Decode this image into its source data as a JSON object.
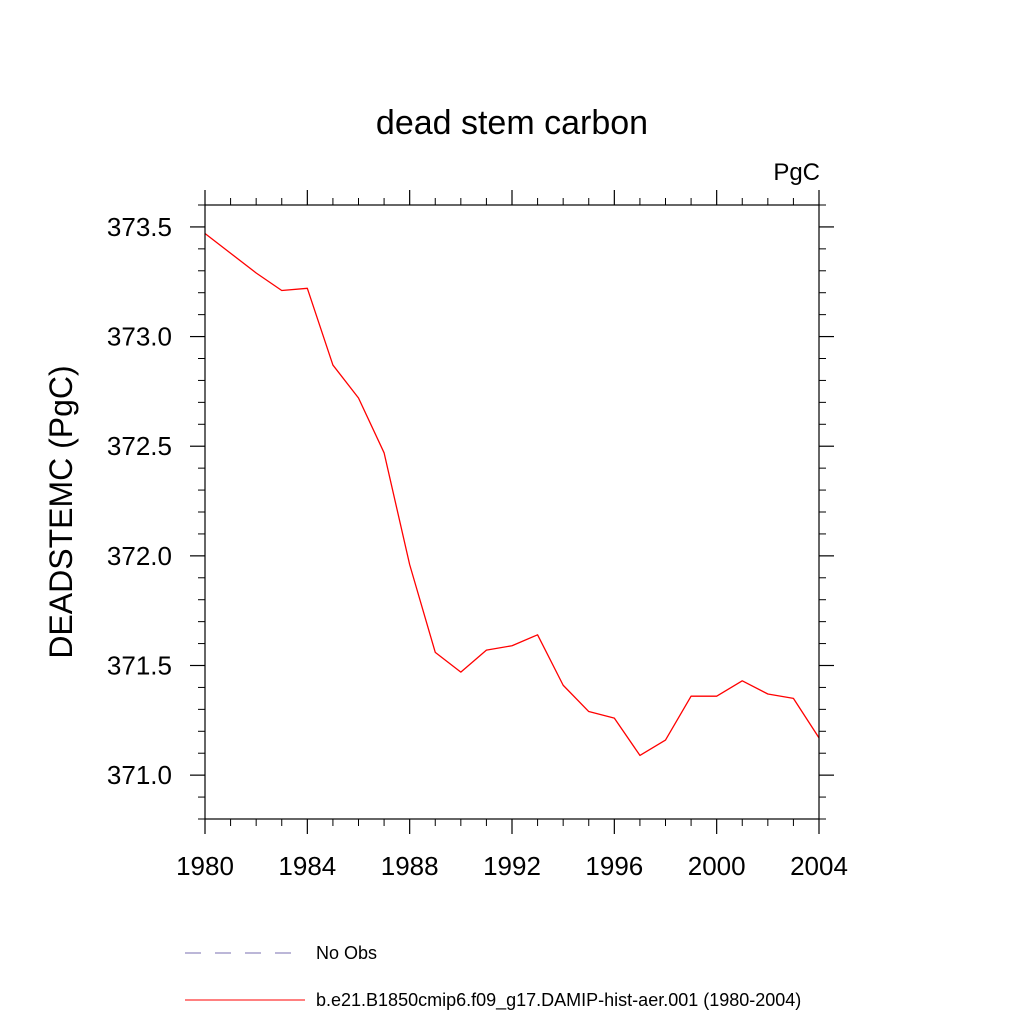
{
  "chart_data": {
    "type": "line",
    "title": "dead stem carbon",
    "units_label": "PgC",
    "ylabel": "DEADSTEMC  (PgC)",
    "xlabel": "",
    "xlim": [
      1980,
      2004
    ],
    "ylim": [
      370.8,
      373.6
    ],
    "x_ticks": [
      1980,
      1984,
      1988,
      1992,
      1996,
      2000,
      2004
    ],
    "x_tick_labels": [
      "1980",
      "1984",
      "1988",
      "1992",
      "1996",
      "2000",
      "2004"
    ],
    "y_ticks": [
      371.0,
      371.5,
      372.0,
      372.5,
      373.0,
      373.5
    ],
    "y_tick_labels": [
      "371.0",
      "371.5",
      "372.0",
      "372.5",
      "373.0",
      "373.5"
    ],
    "x_minor_step": 1,
    "y_minor_step": 0.1,
    "grid": false,
    "legend_position": "bottom",
    "series": [
      {
        "name": "b.e21.B1850cmip6.f09_g17.DAMIP-hist-aer.001 (1980-2004)",
        "color": "#ff0000",
        "style": "solid",
        "x": [
          1980,
          1981,
          1982,
          1983,
          1984,
          1985,
          1986,
          1987,
          1988,
          1989,
          1990,
          1991,
          1992,
          1993,
          1994,
          1995,
          1996,
          1997,
          1998,
          1999,
          2000,
          2001,
          2002,
          2003,
          2004
        ],
        "y": [
          373.47,
          373.38,
          373.29,
          373.21,
          373.22,
          372.87,
          372.72,
          372.47,
          371.96,
          371.56,
          371.47,
          371.57,
          371.59,
          371.64,
          371.41,
          371.29,
          371.26,
          371.09,
          371.16,
          371.36,
          371.36,
          371.43,
          371.37,
          371.35,
          371.17
        ]
      }
    ],
    "legend": [
      {
        "label": "No Obs",
        "color": "#7a6fb0",
        "style": "dashed"
      },
      {
        "label": "b.e21.B1850cmip6.f09_g17.DAMIP-hist-aer.001 (1980-2004)",
        "color": "#ff0000",
        "style": "solid"
      }
    ]
  }
}
